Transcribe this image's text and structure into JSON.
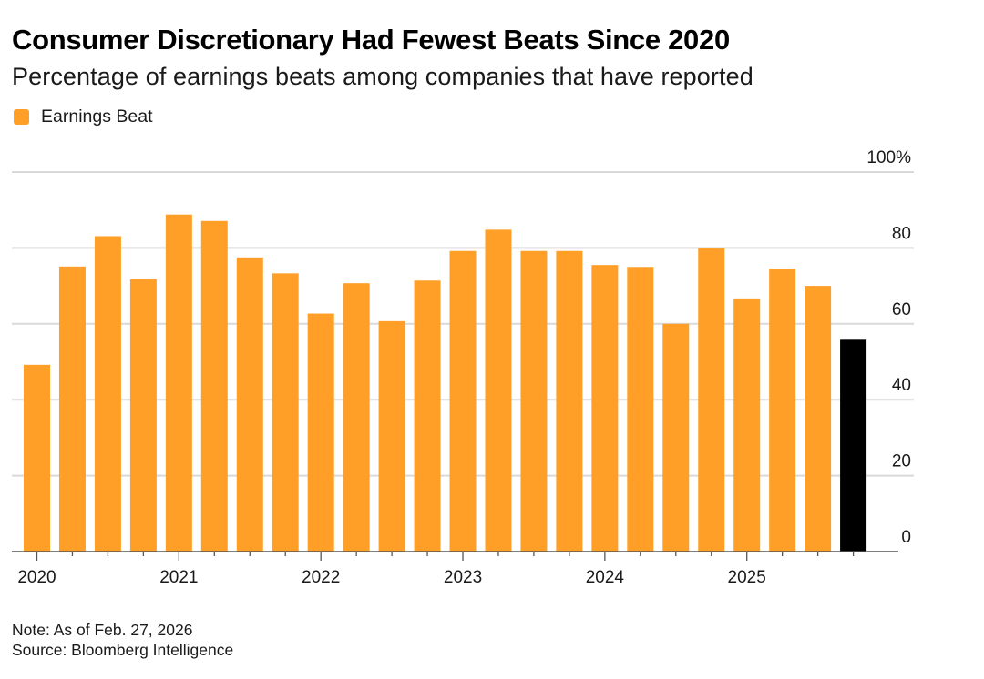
{
  "header": {
    "title": "Consumer Discretionary Had Fewest Beats Since 2020",
    "subtitle": "Percentage of earnings beats among companies that have reported"
  },
  "legend": [
    {
      "label": "Earnings Beat",
      "color": "#ff9f28"
    }
  ],
  "footer": {
    "note": "Note: As of Feb. 27, 2026",
    "source": "Source: Bloomberg Intelligence"
  },
  "colors": {
    "bar": "#ff9f28",
    "highlight": "#000000",
    "grid": "#d9d9d9",
    "axis": "#555555"
  },
  "chart_data": {
    "type": "bar",
    "title": "Consumer Discretionary Had Fewest Beats Since 2020",
    "subtitle": "Percentage of earnings beats among companies that have reported",
    "xlabel": "",
    "ylabel": "",
    "ylim": [
      0,
      100
    ],
    "yticks": [
      0,
      20,
      40,
      60,
      80,
      100
    ],
    "ytick_labels": [
      "0",
      "20",
      "40",
      "60",
      "80",
      "100%"
    ],
    "y_axis_position": "right",
    "grid": true,
    "legend_position": "top-left",
    "x_tick_labels": [
      {
        "index": 0,
        "label": "2020"
      },
      {
        "index": 4,
        "label": "2021"
      },
      {
        "index": 8,
        "label": "2022"
      },
      {
        "index": 12,
        "label": "2023"
      },
      {
        "index": 16,
        "label": "2024"
      },
      {
        "index": 20,
        "label": "2025"
      }
    ],
    "categories": [
      "2020 Q1",
      "2020 Q2",
      "2020 Q3",
      "2020 Q4",
      "2021 Q1",
      "2021 Q2",
      "2021 Q3",
      "2021 Q4",
      "2022 Q1",
      "2022 Q2",
      "2022 Q3",
      "2022 Q4",
      "2023 Q1",
      "2023 Q2",
      "2023 Q3",
      "2023 Q4",
      "2024 Q1",
      "2024 Q2",
      "2024 Q3",
      "2024 Q4",
      "2025 Q1",
      "2025 Q2",
      "2025 Q3",
      "2025 Q4"
    ],
    "series": [
      {
        "name": "Earnings Beat",
        "values": [
          49.2,
          75.1,
          83.1,
          71.7,
          88.8,
          87.1,
          77.5,
          73.3,
          62.7,
          70.7,
          60.7,
          71.4,
          79.2,
          84.8,
          79.2,
          79.2,
          75.5,
          75.0,
          60.0,
          80.0,
          66.7,
          74.5,
          70.0,
          55.8
        ],
        "highlight_last": true
      }
    ]
  }
}
